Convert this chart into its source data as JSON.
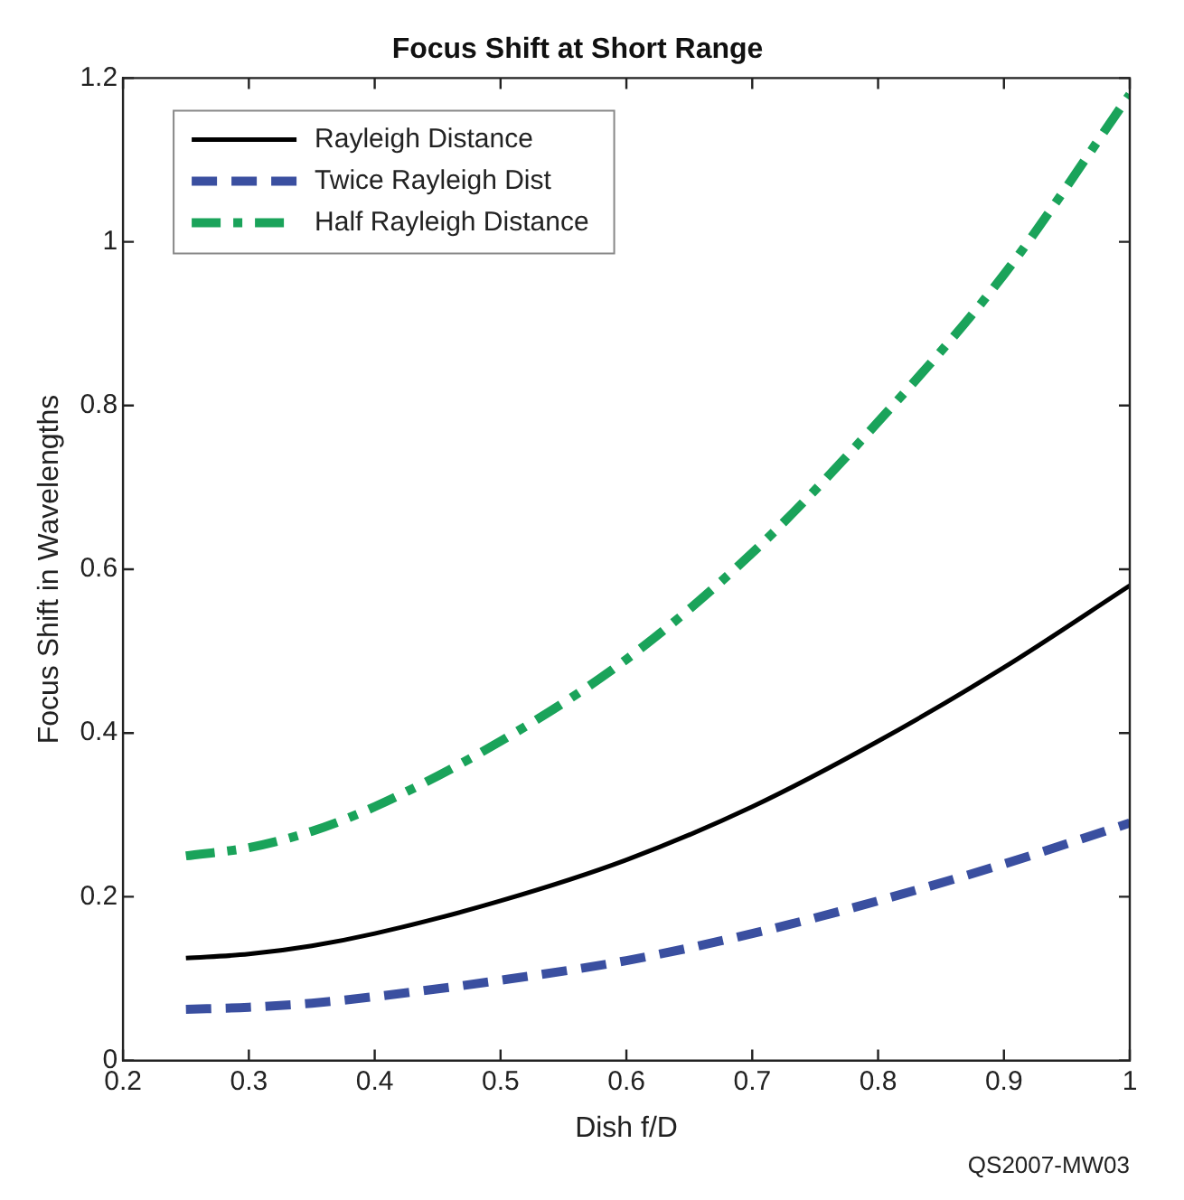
{
  "chart_data": {
    "type": "line",
    "title": "Focus Shift at Short Range",
    "xlabel": "Dish f/D",
    "ylabel": "Focus Shift in Wavelengths",
    "annotations": [
      "QS2007-MW03"
    ],
    "x": [
      0.25,
      0.3,
      0.35,
      0.4,
      0.5,
      0.6,
      0.7,
      0.8,
      0.9,
      1.0
    ],
    "series": [
      {
        "name": "Rayleigh Distance",
        "color": "#000000",
        "line_style": "solid",
        "values": [
          0.125,
          0.13,
          0.14,
          0.155,
          0.195,
          0.245,
          0.31,
          0.39,
          0.48,
          0.58
        ]
      },
      {
        "name": "Twice Rayleigh Dist",
        "color": "#3a4fa0",
        "line_style": "dashed",
        "values": [
          0.0625,
          0.065,
          0.07,
          0.078,
          0.098,
          0.122,
          0.155,
          0.195,
          0.24,
          0.29
        ]
      },
      {
        "name": "Half Rayleigh Distance",
        "color": "#1aa35a",
        "line_style": "dashed",
        "values": [
          0.25,
          0.26,
          0.28,
          0.31,
          0.39,
          0.49,
          0.62,
          0.78,
          0.96,
          1.18
        ]
      }
    ],
    "xlim": [
      0.2,
      1
    ],
    "xticks": [
      0.2,
      0.3,
      0.4,
      0.5,
      0.6,
      0.7,
      0.8,
      0.9,
      1
    ],
    "ylim": [
      0,
      1.2
    ],
    "yticks": [
      0,
      0.2,
      0.4,
      0.6,
      0.8,
      1,
      1.2
    ],
    "grid": false,
    "legend": "top left",
    "marker": "none"
  }
}
